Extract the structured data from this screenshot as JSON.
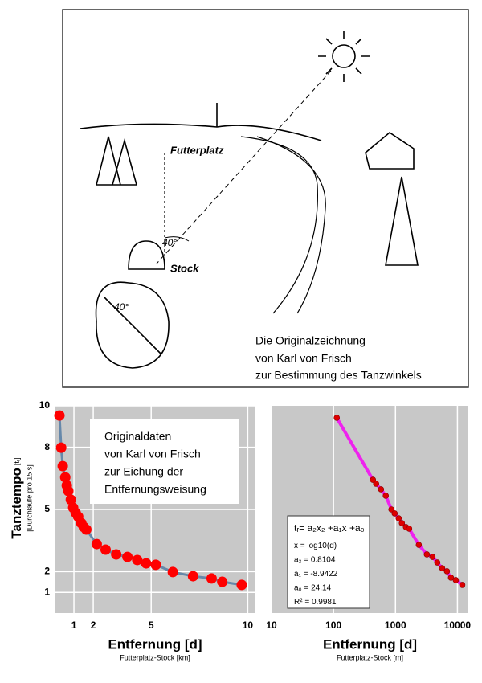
{
  "illustration": {
    "labels": [
      "Futterplatz",
      "40°",
      "Stock",
      "40°"
    ],
    "caption": [
      "Die Originalzeichnung",
      "von Karl von Frisch",
      "zur Bestimmung des Tanzwinkels"
    ]
  },
  "chart_data": [
    {
      "type": "line",
      "x_label": "Entfernung [d]",
      "x_sublabel": "Futterplatz-Stock [km]",
      "y_label": "Tanztempo",
      "y_label_unit": "[tᵣ]",
      "y_sublabel": "[Durchläufe pro 15 s]",
      "annotation": [
        "Originaldaten",
        "von Karl von Frisch",
        "zur Eichung der",
        "Entfernungsweisung"
      ],
      "xlim": [
        0,
        10.4
      ],
      "ylim": [
        0,
        10
      ],
      "xticks": [
        1,
        2,
        5,
        10
      ],
      "yticks": [
        1,
        2,
        5,
        8,
        10
      ],
      "grid": true,
      "series": [
        {
          "color": "#ff0000",
          "line_color": "#6688aa",
          "x": [
            0.25,
            0.34,
            0.42,
            0.55,
            0.63,
            0.71,
            0.84,
            0.96,
            1.09,
            1.22,
            1.38,
            1.51,
            1.64,
            2.18,
            2.64,
            3.19,
            3.77,
            4.28,
            4.74,
            5.24,
            6.12,
            7.17,
            8.13,
            8.68,
            9.69
          ],
          "values": [
            9.53,
            7.98,
            7.09,
            6.55,
            6.16,
            5.89,
            5.47,
            5.08,
            4.84,
            4.65,
            4.34,
            4.15,
            4.03,
            3.33,
            3.06,
            2.83,
            2.71,
            2.56,
            2.4,
            2.33,
            1.98,
            1.78,
            1.67,
            1.51,
            1.36
          ]
        }
      ]
    },
    {
      "type": "line",
      "x_label": "Entfernung [d]",
      "x_sublabel": "Futterplatz-Stock [m]",
      "x_log": true,
      "annotation": [
        "tᵣ= a₂x₂ +a₁x +a₀",
        "x = log10(d)",
        "a₂ = 0.8104",
        "a₁ = -8.9422",
        "a₀ = 24.14",
        "R² = 0.9981"
      ],
      "xlim": [
        10,
        15000
      ],
      "ylim": [
        0,
        10
      ],
      "xticks": [
        10,
        100,
        1000,
        10000
      ],
      "grid": true,
      "series": [
        {
          "color": "#dd0000",
          "line_color": "#ee22ee",
          "x": [
            113,
            433,
            488,
            584,
            698,
            861,
            970,
            1127,
            1270,
            1476,
            1663,
            2382,
            3209,
            3955,
            4732,
            5662,
            6776,
            7870,
            9419,
            11970
          ],
          "values": [
            9.42,
            6.43,
            6.24,
            5.97,
            5.66,
            5.0,
            4.81,
            4.57,
            4.34,
            4.15,
            4.07,
            3.29,
            2.83,
            2.71,
            2.44,
            2.17,
            2.02,
            1.71,
            1.59,
            1.36
          ]
        }
      ]
    }
  ]
}
